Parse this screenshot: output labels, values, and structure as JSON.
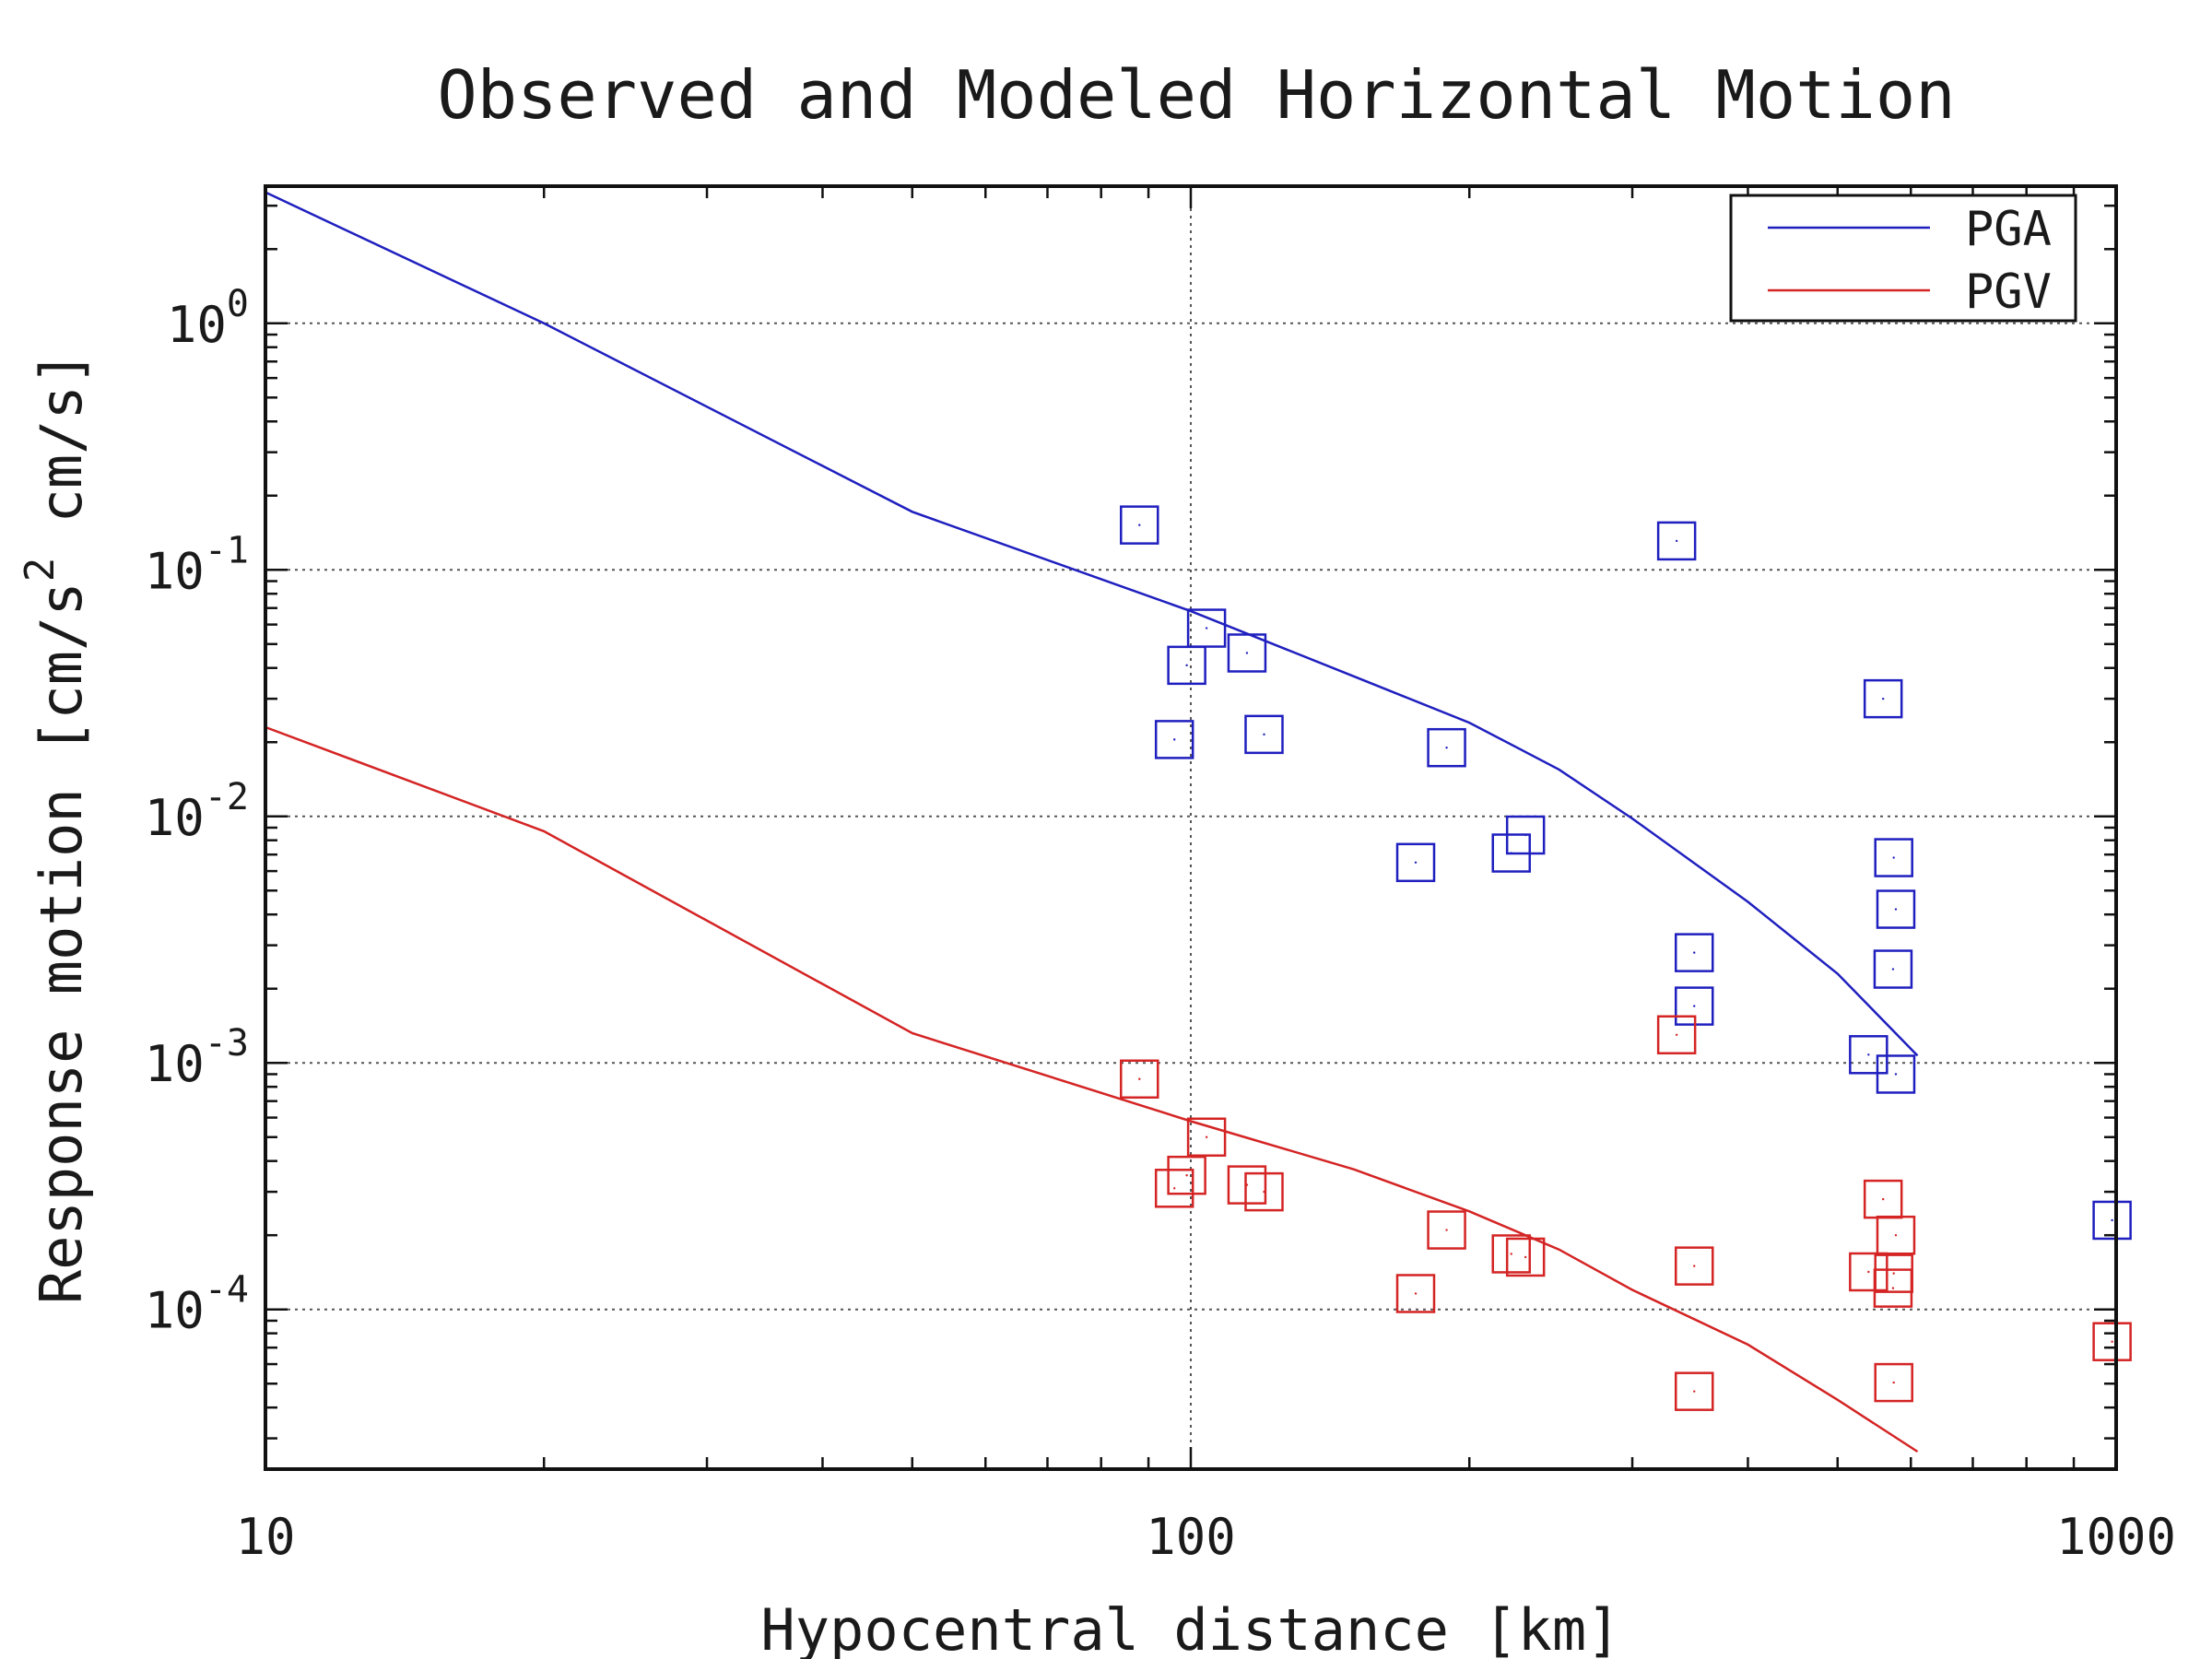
{
  "chart_data": {
    "type": "scatter",
    "title": "Observed and Modeled Horizontal Motion",
    "xlabel": "Hypocentral distance [km]",
    "ylabel": {
      "prefix": "Response motion [cm/s",
      "exponent": "2",
      "suffix": " cm/s]"
    },
    "xscale": "log",
    "yscale": "log",
    "xlim": [
      10,
      1000
    ],
    "ylim": [
      2.25e-05,
      3.6
    ],
    "grid": true,
    "legend_position": "top-right",
    "x_ticks": [
      {
        "value": 10,
        "label": "10"
      },
      {
        "value": 100,
        "label": "100"
      },
      {
        "value": 1000,
        "label": "1000"
      }
    ],
    "y_ticks": [
      {
        "value": 1,
        "base": "10",
        "exp": "0"
      },
      {
        "value": 0.1,
        "base": "10",
        "exp": "-1"
      },
      {
        "value": 0.01,
        "base": "10",
        "exp": "-2"
      },
      {
        "value": 0.001,
        "base": "10",
        "exp": "-3"
      },
      {
        "value": 0.0001,
        "base": "10",
        "exp": "-4"
      }
    ],
    "series": [
      {
        "name": "PGA",
        "color": "#1f1fbf",
        "model_line": [
          [
            10,
            3.4
          ],
          [
            20,
            1.0
          ],
          [
            50,
            0.172
          ],
          [
            100,
            0.068
          ],
          [
            150,
            0.037
          ],
          [
            200,
            0.024
          ],
          [
            250,
            0.0155
          ],
          [
            300,
            0.0098
          ],
          [
            400,
            0.0045
          ],
          [
            500,
            0.0023
          ],
          [
            610,
            0.00107
          ]
        ],
        "observed": [
          [
            88,
            0.152
          ],
          [
            104,
            0.058
          ],
          [
            99,
            0.041
          ],
          [
            115,
            0.046
          ],
          [
            96,
            0.0205
          ],
          [
            120,
            0.0215
          ],
          [
            189,
            0.019
          ],
          [
            175,
            0.0065
          ],
          [
            222,
            0.0071
          ],
          [
            230,
            0.0084
          ],
          [
            335,
            0.131
          ],
          [
            350,
            0.0028
          ],
          [
            350,
            0.0017
          ],
          [
            560,
            0.03
          ],
          [
            575,
            0.0068
          ],
          [
            578,
            0.0042
          ],
          [
            574,
            0.0024
          ],
          [
            540,
            0.00108
          ],
          [
            578,
            0.0009
          ],
          [
            990,
            0.00023
          ]
        ]
      },
      {
        "name": "PGV",
        "color": "#d42424",
        "model_line": [
          [
            10,
            0.023
          ],
          [
            20,
            0.0087
          ],
          [
            50,
            0.00132
          ],
          [
            100,
            0.00058
          ],
          [
            150,
            0.00037
          ],
          [
            200,
            0.00025
          ],
          [
            250,
            0.000175
          ],
          [
            300,
            0.00012
          ],
          [
            400,
            7.2e-05
          ],
          [
            500,
            4.3e-05
          ],
          [
            610,
            2.65e-05
          ]
        ],
        "observed": [
          [
            88,
            0.00086
          ],
          [
            104,
            0.0005
          ],
          [
            99,
            0.00035
          ],
          [
            96,
            0.00031
          ],
          [
            115,
            0.00032
          ],
          [
            120,
            0.0003
          ],
          [
            189,
            0.00021
          ],
          [
            175,
            0.000116
          ],
          [
            222,
            0.000168
          ],
          [
            230,
            0.000163
          ],
          [
            335,
            0.0013
          ],
          [
            350,
            0.00015
          ],
          [
            350,
            4.65e-05
          ],
          [
            560,
            0.00028
          ],
          [
            578,
            0.0002
          ],
          [
            540,
            0.000142
          ],
          [
            575,
            0.00014
          ],
          [
            574,
            0.000122
          ],
          [
            575,
            5.05e-05
          ],
          [
            990,
            7.4e-05
          ]
        ]
      }
    ]
  }
}
